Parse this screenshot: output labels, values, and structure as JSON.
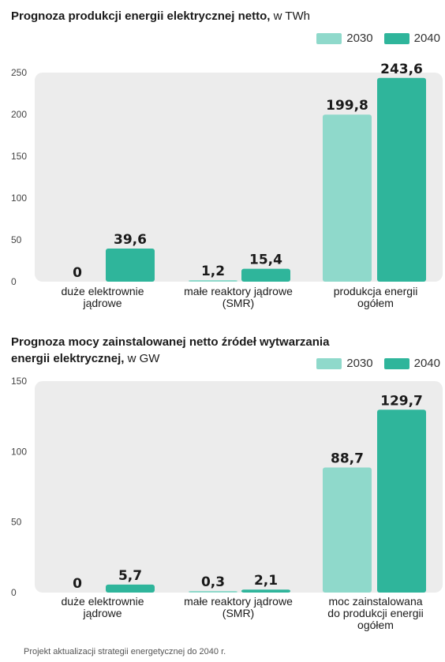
{
  "colors": {
    "c2030": "#8fd9cb",
    "c2040": "#2fb59b",
    "panel": "#ececec"
  },
  "chart_data": [
    {
      "type": "bar",
      "title": "Prognoza produkcji energii elektrycznej netto,",
      "unit": "w TWh",
      "categories": [
        [
          "duże elektrownie",
          "jądrowe"
        ],
        [
          "małe reaktory jądrowe",
          "(SMR)"
        ],
        [
          "produkcja energii",
          "ogółem"
        ]
      ],
      "series": [
        {
          "name": "2030",
          "values": [
            0,
            1.2,
            199.8
          ],
          "labels": [
            "0",
            "1,2",
            "199,8"
          ]
        },
        {
          "name": "2040",
          "values": [
            39.6,
            15.4,
            243.6
          ],
          "labels": [
            "39,6",
            "15,4",
            "243,6"
          ]
        }
      ],
      "ylim": [
        0,
        250
      ],
      "yticks": [
        0,
        50,
        100,
        150,
        200,
        250
      ],
      "legend": "top-right",
      "grid": false
    },
    {
      "type": "bar",
      "title": "Prognoza mocy zainstalowanej netto źródeł wytwarzania energii elektrycznej,",
      "unit": "w GW",
      "categories": [
        [
          "duże elektrownie",
          "jądrowe"
        ],
        [
          "małe reaktory jądrowe",
          "(SMR)"
        ],
        [
          "moc zainstalowana",
          "do produkcji energii",
          "ogółem"
        ]
      ],
      "series": [
        {
          "name": "2030",
          "values": [
            0,
            0.3,
            88.7
          ],
          "labels": [
            "0",
            "0,3",
            "88,7"
          ]
        },
        {
          "name": "2040",
          "values": [
            5.7,
            2.1,
            129.7
          ],
          "labels": [
            "5,7",
            "2,1",
            "129,7"
          ]
        }
      ],
      "ylim": [
        0,
        150
      ],
      "yticks": [
        0,
        50,
        100,
        150
      ],
      "legend": "top-right",
      "grid": false
    }
  ],
  "source": "Projekt aktualizacji strategii energetycznej do 2040 r."
}
